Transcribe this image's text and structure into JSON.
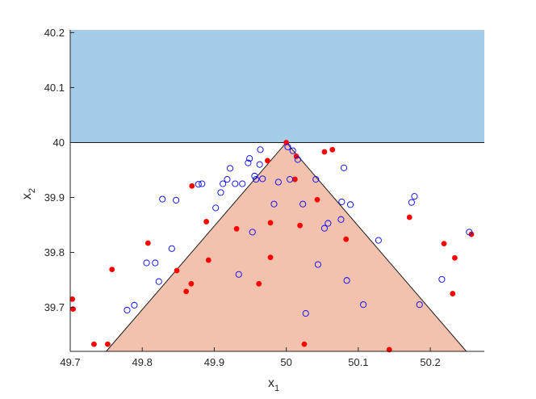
{
  "chart_data": {
    "type": "scatter",
    "title": "",
    "xlabel_main": "x",
    "xlabel_sub": "1",
    "ylabel_main": "x",
    "ylabel_sub": "2",
    "xlim": [
      49.7,
      50.275
    ],
    "ylim": [
      39.62,
      40.205
    ],
    "xticks": [
      49.7,
      49.8,
      49.9,
      50,
      50.1,
      50.2
    ],
    "xtick_labels": [
      "49.7",
      "49.8",
      "49.9",
      "50",
      "50.1",
      "50.2"
    ],
    "yticks": [
      39.7,
      39.8,
      39.9,
      40,
      40.1,
      40.2
    ],
    "ytick_labels": [
      "39.7",
      "39.8",
      "39.9",
      "40",
      "40.1",
      "40.2"
    ],
    "grid": false,
    "legend": false,
    "colors": {
      "infeasible_region": "#a6cde8",
      "feasible_region": "#f2c2ae",
      "filled_points": "#ff0000",
      "open_points": "#0000ff",
      "boundary": "#1a1a1a"
    },
    "regions": [
      {
        "kind": "band",
        "y_from": 40.0,
        "y_to": 40.205,
        "color": "#a6cde8"
      },
      {
        "kind": "triangle",
        "vertices": [
          [
            49.75,
            39.62
          ],
          [
            50.0,
            40.0
          ],
          [
            50.25,
            39.62
          ]
        ],
        "color": "#f2c2ae"
      }
    ],
    "series": [
      {
        "marker": "filled-circle",
        "points": [
          [
            49.703,
            39.715
          ],
          [
            49.704,
            39.697
          ],
          [
            49.733,
            39.633
          ],
          [
            49.752,
            39.633
          ],
          [
            49.758,
            39.769
          ],
          [
            49.808,
            39.817
          ],
          [
            49.848,
            39.767
          ],
          [
            49.861,
            39.729
          ],
          [
            49.868,
            39.743
          ],
          [
            49.869,
            39.921
          ],
          [
            49.889,
            39.856
          ],
          [
            49.892,
            39.786
          ],
          [
            49.931,
            39.843
          ],
          [
            49.962,
            39.743
          ],
          [
            49.974,
            39.967
          ],
          [
            49.978,
            39.791
          ],
          [
            49.978,
            39.854
          ],
          [
            50.0,
            40.0
          ],
          [
            50.012,
            39.933
          ],
          [
            50.014,
            39.975
          ],
          [
            50.019,
            39.849
          ],
          [
            50.025,
            39.633
          ],
          [
            50.043,
            39.896
          ],
          [
            50.053,
            39.983
          ],
          [
            50.064,
            39.987
          ],
          [
            50.083,
            39.824
          ],
          [
            50.143,
            39.623
          ],
          [
            50.171,
            39.864
          ],
          [
            50.219,
            39.816
          ],
          [
            50.231,
            39.725
          ],
          [
            50.234,
            39.79
          ],
          [
            50.257,
            39.833
          ]
        ]
      },
      {
        "marker": "open-circle",
        "points": [
          [
            49.779,
            39.695
          ],
          [
            49.789,
            39.704
          ],
          [
            49.806,
            39.781
          ],
          [
            49.818,
            39.781
          ],
          [
            49.823,
            39.747
          ],
          [
            49.828,
            39.897
          ],
          [
            49.841,
            39.807
          ],
          [
            49.847,
            39.895
          ],
          [
            49.878,
            39.924
          ],
          [
            49.883,
            39.925
          ],
          [
            49.902,
            39.881
          ],
          [
            49.909,
            39.909
          ],
          [
            49.912,
            39.925
          ],
          [
            49.918,
            39.933
          ],
          [
            49.922,
            39.953
          ],
          [
            49.929,
            39.925
          ],
          [
            49.934,
            39.76
          ],
          [
            49.939,
            39.925
          ],
          [
            49.947,
            39.963
          ],
          [
            49.949,
            39.971
          ],
          [
            49.953,
            39.837
          ],
          [
            49.956,
            39.939
          ],
          [
            49.958,
            39.933
          ],
          [
            49.963,
            39.96
          ],
          [
            49.964,
            39.987
          ],
          [
            49.967,
            39.934
          ],
          [
            49.983,
            39.888
          ],
          [
            49.989,
            39.928
          ],
          [
            50.002,
            39.992
          ],
          [
            50.005,
            39.933
          ],
          [
            50.009,
            39.985
          ],
          [
            50.016,
            39.969
          ],
          [
            50.023,
            39.888
          ],
          [
            50.027,
            39.689
          ],
          [
            50.041,
            39.933
          ],
          [
            50.044,
            39.778
          ],
          [
            50.053,
            39.844
          ],
          [
            50.058,
            39.853
          ],
          [
            50.076,
            39.86
          ],
          [
            50.077,
            39.892
          ],
          [
            50.08,
            39.954
          ],
          [
            50.084,
            39.749
          ],
          [
            50.089,
            39.887
          ],
          [
            50.107,
            39.705
          ],
          [
            50.128,
            39.822
          ],
          [
            50.174,
            39.891
          ],
          [
            50.178,
            39.902
          ],
          [
            50.185,
            39.705
          ],
          [
            50.216,
            39.751
          ],
          [
            50.254,
            39.837
          ]
        ]
      }
    ]
  }
}
